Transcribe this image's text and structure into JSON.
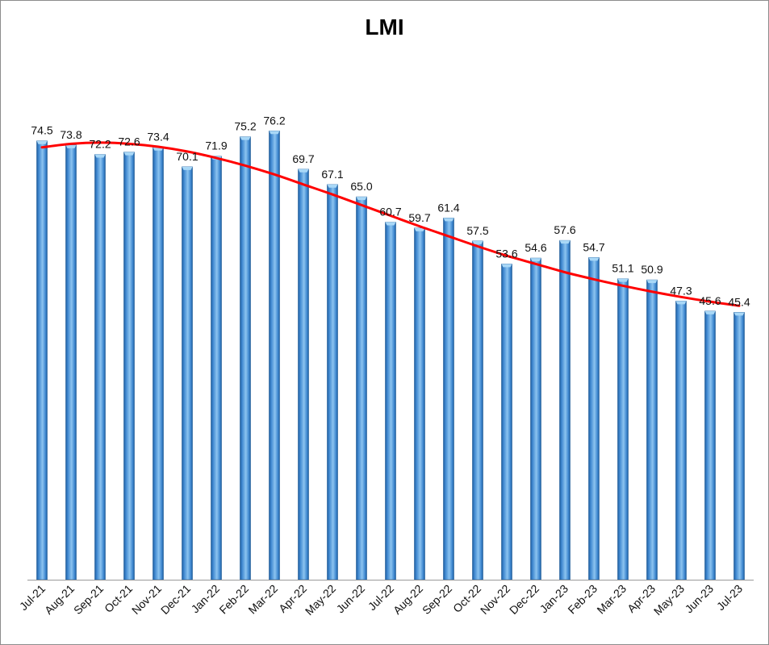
{
  "chart_data": {
    "type": "bar",
    "title": "LMI",
    "xlabel": "",
    "ylabel": "",
    "ylim": [
      0,
      85
    ],
    "grid": false,
    "categories": [
      "Jul-21",
      "Aug-21",
      "Sep-21",
      "Oct-21",
      "Nov-21",
      "Dec-21",
      "Jan-22",
      "Feb-22",
      "Mar-22",
      "Apr-22",
      "May-22",
      "Jun-22",
      "Jul-22",
      "Aug-22",
      "Sep-22",
      "Oct-22",
      "Nov-22",
      "Dec-22",
      "Jan-23",
      "Feb-23",
      "Mar-23",
      "Apr-23",
      "May-23",
      "Jun-23",
      "Jul-23"
    ],
    "values": [
      74.5,
      73.8,
      72.2,
      72.6,
      73.4,
      70.1,
      71.9,
      75.2,
      76.2,
      69.7,
      67.1,
      65.0,
      60.7,
      59.7,
      61.4,
      57.5,
      53.6,
      54.6,
      57.6,
      54.7,
      51.1,
      50.9,
      47.3,
      45.6,
      45.4
    ],
    "value_labels": [
      "74.5",
      "73.8",
      "72.2",
      "72.6",
      "73.4",
      "70.1",
      "71.9",
      "75.2",
      "76.2",
      "69.7",
      "67.1",
      "65.0",
      "60.7",
      "59.7",
      "61.4",
      "57.5",
      "53.6",
      "54.6",
      "57.6",
      "54.7",
      "51.1",
      "50.9",
      "47.3",
      "45.6",
      "45.4"
    ],
    "trendline": {
      "type": "polynomial",
      "color": "#ff0000",
      "values": [
        73.4,
        74.0,
        74.2,
        74.0,
        73.5,
        72.7,
        71.6,
        70.3,
        68.8,
        67.1,
        65.4,
        63.6,
        61.8,
        60.0,
        58.3,
        56.6,
        55.0,
        53.6,
        52.2,
        51.0,
        49.9,
        48.9,
        48.0,
        47.2,
        46.5
      ]
    },
    "colors": {
      "bar": "#3d86cf",
      "bar_dark": "#1f5c9a",
      "bar_light": "#8cc4f0",
      "bar_top": "#a9d8f7",
      "trend": "#ff0000",
      "axis": "#9a9a9a"
    }
  }
}
